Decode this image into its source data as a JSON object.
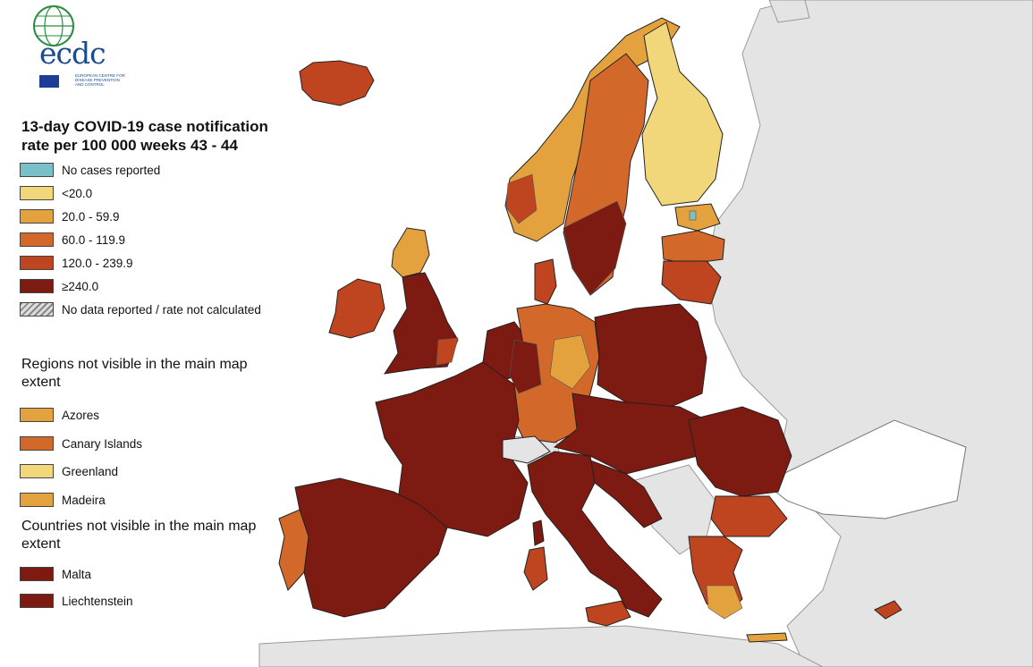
{
  "title": "13-day COVID-19 case notification rate per 100 000 weeks 43 - 44",
  "logo": {
    "brand": "ecdc",
    "subtitle": "EUROPEAN CENTRE FOR DISEASE PREVENTION AND CONTROL"
  },
  "legend": [
    {
      "label": "No cases reported",
      "color": "#7bbfc9"
    },
    {
      "label": "<20.0",
      "color": "#f2d77a"
    },
    {
      "label": "20.0 - 59.9",
      "color": "#e3a23d"
    },
    {
      "label": "60.0 - 119.9",
      "color": "#d2692a"
    },
    {
      "label": "120.0 - 239.9",
      "color": "#bf4420"
    },
    {
      "label": "≥240.0",
      "color": "#7d1a12"
    },
    {
      "label": "No data reported / rate not calculated",
      "pattern": "hatched"
    }
  ],
  "regions_not_visible": {
    "title": "Regions not visible in the main map extent",
    "items": [
      {
        "label": "Azores",
        "color": "#e3a23d"
      },
      {
        "label": "Canary Islands",
        "color": "#d2692a"
      },
      {
        "label": "Greenland",
        "color": "#f2d77a"
      },
      {
        "label": "Madeira",
        "color": "#e3a23d"
      }
    ]
  },
  "countries_not_visible": {
    "title": "Countries not visible in the main map extent",
    "items": [
      {
        "label": "Malta",
        "color": "#7d1a12"
      },
      {
        "label": "Liechtenstein",
        "color": "#7d1a12"
      }
    ]
  },
  "colors": {
    "sea": "#ffffff",
    "non_eu_land": "#e4e4e4",
    "border": "#222222"
  }
}
